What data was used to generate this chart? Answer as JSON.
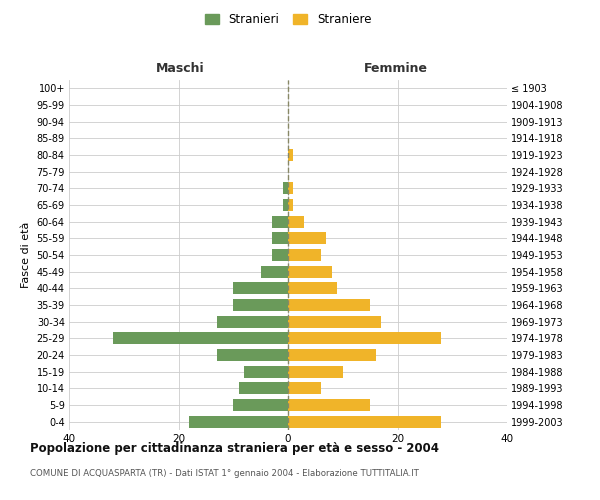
{
  "age_groups": [
    "0-4",
    "5-9",
    "10-14",
    "15-19",
    "20-24",
    "25-29",
    "30-34",
    "35-39",
    "40-44",
    "45-49",
    "50-54",
    "55-59",
    "60-64",
    "65-69",
    "70-74",
    "75-79",
    "80-84",
    "85-89",
    "90-94",
    "95-99",
    "100+"
  ],
  "birth_years": [
    "1999-2003",
    "1994-1998",
    "1989-1993",
    "1984-1988",
    "1979-1983",
    "1974-1978",
    "1969-1973",
    "1964-1968",
    "1959-1963",
    "1954-1958",
    "1949-1953",
    "1944-1948",
    "1939-1943",
    "1934-1938",
    "1929-1933",
    "1924-1928",
    "1919-1923",
    "1914-1918",
    "1909-1913",
    "1904-1908",
    "≤ 1903"
  ],
  "maschi": [
    18,
    10,
    9,
    8,
    13,
    32,
    13,
    10,
    10,
    5,
    3,
    3,
    3,
    1,
    1,
    0,
    0,
    0,
    0,
    0,
    0
  ],
  "femmine": [
    28,
    15,
    6,
    10,
    16,
    28,
    17,
    15,
    9,
    8,
    6,
    7,
    3,
    1,
    1,
    0,
    1,
    0,
    0,
    0,
    0
  ],
  "color_maschi": "#6a9a5a",
  "color_femmine": "#f0b429",
  "title": "Popolazione per cittadinanza straniera per età e sesso - 2004",
  "subtitle": "COMUNE DI ACQUASPARTA (TR) - Dati ISTAT 1° gennaio 2004 - Elaborazione TUTTITALIA.IT",
  "ylabel_left": "Fasce di età",
  "header_maschi": "Maschi",
  "header_femmine": "Femmine",
  "legend_maschi": "Stranieri",
  "legend_femmine": "Straniere",
  "xlim": 40,
  "background_color": "#ffffff",
  "grid_color": "#cccccc"
}
